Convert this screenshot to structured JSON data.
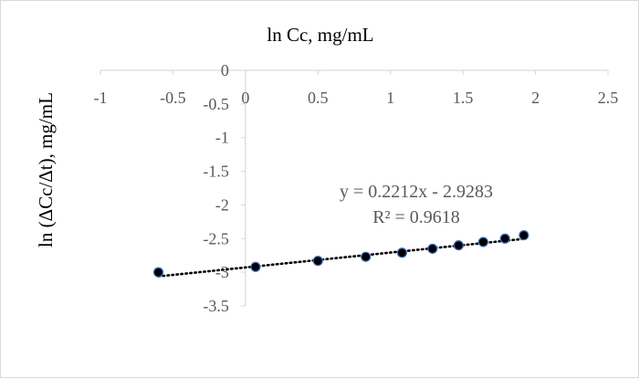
{
  "chart_data": {
    "type": "scatter",
    "xlabel": "ln Cc, mg/mL",
    "ylabel": "ln (ΔCc/Δt), mg/mL",
    "xlim": [
      -1,
      2.5
    ],
    "ylim": [
      -3.5,
      0
    ],
    "x_ticks": [
      "-1",
      "-0.5",
      "0",
      "0.5",
      "1",
      "1.5",
      "2",
      "2.5"
    ],
    "y_ticks": [
      "0",
      "-0.5",
      "-1",
      "-1.5",
      "-2",
      "-2.5",
      "-3",
      "-3.5"
    ],
    "x_ticks_values": [
      -1,
      -0.5,
      0,
      0.5,
      1,
      1.5,
      2,
      2.5
    ],
    "y_ticks_values": [
      0,
      -0.5,
      -1,
      -1.5,
      -2,
      -2.5,
      -3,
      -3.5
    ],
    "grid": false,
    "legend": "none",
    "series": [
      {
        "x": [
          -0.6,
          0.07,
          0.5,
          0.83,
          1.08,
          1.29,
          1.47,
          1.64,
          1.79,
          1.92
        ],
        "y": [
          -3.0,
          -2.92,
          -2.83,
          -2.77,
          -2.71,
          -2.65,
          -2.6,
          -2.55,
          -2.5,
          -2.45
        ],
        "color": "#000000",
        "marker_edge": "#4472c4"
      }
    ],
    "trendline": {
      "type": "linear",
      "slope": 0.2212,
      "intercept": -2.9283,
      "x_range": [
        -0.6,
        1.92
      ],
      "equation": "y = 0.2212x - 2.9283",
      "r_squared": "R² = 0.9618",
      "color": "#000000"
    },
    "axis_color": "#d9d9d9"
  }
}
